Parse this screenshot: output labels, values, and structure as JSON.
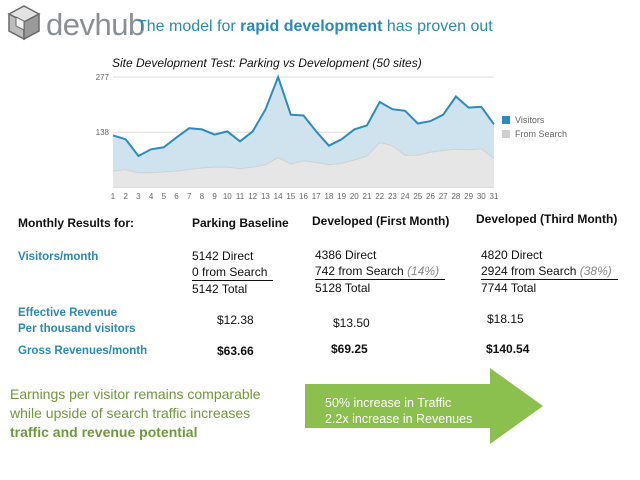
{
  "brand": {
    "name": "devhub"
  },
  "headline": {
    "prefix": "The model for ",
    "emphasis": "rapid development",
    "suffix": " has proven out"
  },
  "chart_data": {
    "type": "area",
    "title": "Site Development Test:  Parking vs Development (50 sites)",
    "x": [
      1,
      2,
      3,
      4,
      5,
      6,
      7,
      8,
      9,
      10,
      11,
      12,
      13,
      14,
      15,
      16,
      17,
      18,
      19,
      20,
      21,
      22,
      23,
      24,
      25,
      26,
      27,
      28,
      29,
      30,
      31
    ],
    "y_ticks": [
      138,
      277
    ],
    "ylim": [
      0,
      277
    ],
    "grid": true,
    "legend_position": "right",
    "series": [
      {
        "name": "Visitors",
        "color": "#2b8cbf",
        "fill": "#cfe3ef",
        "values": [
          130,
          120,
          78,
          95,
          100,
          125,
          148,
          145,
          132,
          140,
          115,
          140,
          195,
          277,
          182,
          180,
          140,
          104,
          120,
          145,
          155,
          214,
          196,
          192,
          160,
          166,
          182,
          228,
          200,
          202,
          158
        ]
      },
      {
        "name": "From Search",
        "color": "#d0d0d0",
        "fill": "#e6e6e6",
        "values": [
          40,
          44,
          36,
          36,
          38,
          40,
          44,
          48,
          50,
          50,
          46,
          50,
          56,
          74,
          58,
          66,
          62,
          56,
          60,
          68,
          78,
          112,
          104,
          80,
          80,
          88,
          92,
          95,
          94,
          96,
          72
        ]
      }
    ]
  },
  "table": {
    "row_label_header": "Monthly Results for:",
    "columns": [
      "Parking Baseline",
      "Developed (First Month)",
      "Developed (Third Month)"
    ],
    "visitors_label": "Visitors/month",
    "visitors": [
      {
        "direct": "5142 Direct",
        "search": "0 from Search",
        "pct": "",
        "total": "5142 Total"
      },
      {
        "direct": "4386 Direct",
        "search": "742 from Search",
        "pct": "(14%)",
        "total": "5128 Total"
      },
      {
        "direct": "4820 Direct",
        "search": "2924 from Search",
        "pct": "(38%)",
        "total": "7744 Total"
      }
    ],
    "eff_label_1": "Effective Revenue",
    "eff_label_2": "Per thousand visitors",
    "effective_revenue": [
      "$12.38",
      "$13.50",
      "$18.15"
    ],
    "gross_label": "Gross Revenues/month",
    "gross_revenue": [
      "$63.66",
      "$69.25",
      "$140.54"
    ]
  },
  "summary": {
    "line1": "Earnings per visitor remains comparable",
    "line2": "while upside of search traffic increases",
    "line3": "traffic and revenue potential"
  },
  "arrow": {
    "line1": "50% increase in Traffic",
    "line2": "2.2x increase in Revenues",
    "color": "#8bbf4e"
  }
}
